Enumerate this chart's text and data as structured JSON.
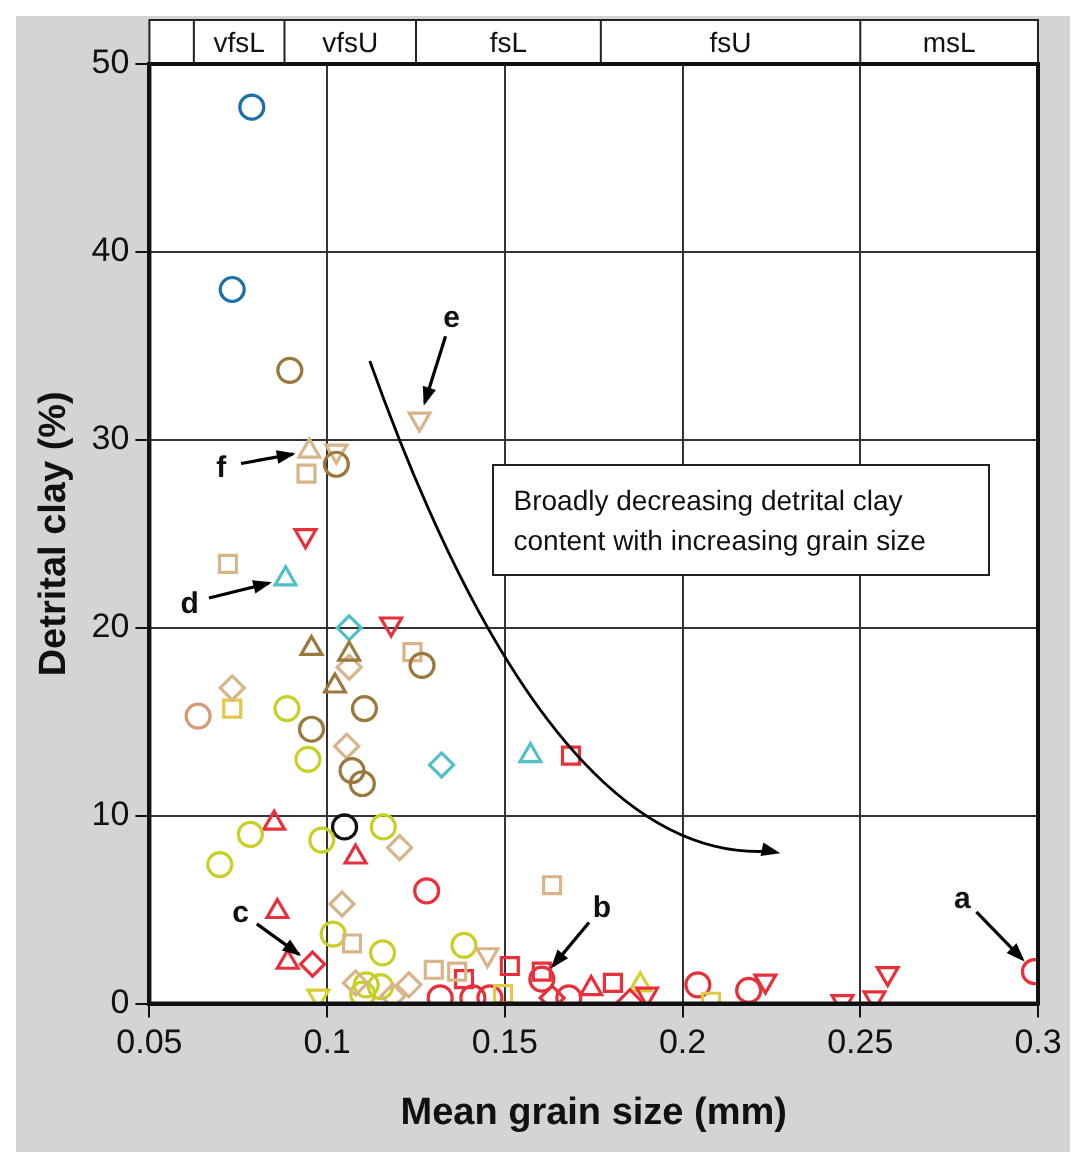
{
  "chart_data": {
    "type": "scatter",
    "xlabel": "Mean grain size (mm)",
    "ylabel": "Detrital clay (%)",
    "xlim": [
      0.05,
      0.3
    ],
    "xticks": [
      0.05,
      0.1,
      0.15,
      0.2,
      0.25,
      0.3
    ],
    "ylim": [
      0,
      50
    ],
    "yticks": [
      0,
      10,
      20,
      30,
      40,
      50
    ],
    "grid": true,
    "legend": false,
    "annotations": [
      "vfsL",
      "vfsU",
      "fsL",
      "fsU",
      "msL",
      {
        "text": "a",
        "x": 0.299,
        "y": 1.7
      },
      {
        "text": "b",
        "x": 0.1604,
        "y": 1.3
      },
      {
        "text": "c",
        "x": 0.0959,
        "y": 2.1
      },
      {
        "text": "d",
        "x": 0.0883,
        "y": 22.6
      },
      {
        "text": "e",
        "x": 0.126,
        "y": 31.1
      },
      {
        "text": "f",
        "x": 0.095,
        "y": 29.4
      },
      "Broadly decreasing detrital clay content with increasing grain size"
    ],
    "series": [
      {
        "color": "#1f6fa8",
        "marker": "circle",
        "x": [
          0.0788,
          0.0733
        ],
        "values": [
          47.7,
          38.0
        ]
      },
      {
        "color": "#9a7a3c",
        "marker": "circle",
        "x": [
          0.0895,
          0.1026,
          0.1267,
          0.0956,
          0.1105,
          0.107,
          0.1099
        ],
        "values": [
          33.7,
          28.7,
          18.0,
          14.6,
          15.7,
          12.4,
          11.7
        ]
      },
      {
        "color": "#9a7a3c",
        "marker": "triangle",
        "x": [
          0.0956,
          0.1062,
          0.1022
        ],
        "values": [
          18.9,
          18.6,
          16.9
        ]
      },
      {
        "color": "#d8b48a",
        "marker": "triangle-down",
        "x": [
          0.126,
          0.1026,
          0.1451
        ],
        "values": [
          31.1,
          29.4,
          2.6
        ]
      },
      {
        "color": "#d8b48a",
        "marker": "triangle",
        "x": [
          0.095
        ],
        "values": [
          29.4
        ]
      },
      {
        "color": "#d8b48a",
        "marker": "square",
        "x": [
          0.0942,
          0.0721,
          0.124,
          0.107,
          0.1366,
          0.1633,
          0.13
        ],
        "values": [
          28.2,
          23.4,
          18.7,
          3.2,
          1.7,
          6.3,
          1.8
        ]
      },
      {
        "color": "#d8b48a",
        "marker": "diamond",
        "x": [
          0.1062,
          0.0733,
          0.1055,
          0.1204,
          0.1042,
          0.108,
          0.123,
          0.1185
        ],
        "values": [
          17.9,
          16.8,
          13.7,
          8.3,
          5.3,
          1.1,
          1.0,
          0.4
        ]
      },
      {
        "color": "#e8303a",
        "marker": "triangle-down",
        "x": [
          0.0939,
          0.118,
          0.19,
          0.2233,
          0.245,
          0.254,
          0.2577
        ],
        "values": [
          24.9,
          20.2,
          0.5,
          1.2,
          0.1,
          0.3,
          1.6
        ]
      },
      {
        "color": "#50c0c8",
        "marker": "triangle",
        "x": [
          0.0883,
          0.1572
        ],
        "values": [
          22.6,
          13.2
        ]
      },
      {
        "color": "#50c0c8",
        "marker": "diamond",
        "x": [
          0.1062,
          0.1322
        ],
        "values": [
          20.0,
          12.7
        ]
      },
      {
        "color": "#e0c848",
        "marker": "square",
        "x": [
          0.0733,
          0.208,
          0.1495
        ],
        "values": [
          15.7,
          0.1,
          0.5
        ]
      },
      {
        "color": "#d89a70",
        "marker": "circle",
        "x": [
          0.0637
        ],
        "values": [
          15.3
        ]
      },
      {
        "color": "#c8d028",
        "marker": "circle",
        "x": [
          0.0887,
          0.0946,
          0.1158,
          0.0784,
          0.0698,
          0.0985,
          0.1017,
          0.1156,
          0.1385,
          0.111,
          0.11,
          0.115
        ],
        "values": [
          15.7,
          13.0,
          9.4,
          9.0,
          7.4,
          8.7,
          3.7,
          2.7,
          3.1,
          1.0,
          0.5,
          0.9
        ]
      },
      {
        "color": "#111111",
        "marker": "circle",
        "x": [
          0.1049
        ],
        "values": [
          9.4
        ]
      },
      {
        "color": "#e8303a",
        "marker": "triangle",
        "x": [
          0.0851,
          0.108,
          0.086,
          0.0889,
          0.1743
        ],
        "values": [
          9.6,
          7.8,
          4.9,
          2.2,
          0.8
        ]
      },
      {
        "color": "#e8303a",
        "marker": "circle",
        "x": [
          0.128,
          0.1604,
          0.168,
          0.2043,
          0.2186,
          0.299,
          0.1318,
          0.141,
          0.1458
        ],
        "values": [
          6.0,
          1.3,
          0.3,
          1.0,
          0.7,
          1.7,
          0.3,
          0.3,
          0.3
        ]
      },
      {
        "color": "#e8303a",
        "marker": "square",
        "x": [
          0.1686,
          0.1385,
          0.1514,
          0.1604,
          0.1804
        ],
        "values": [
          13.2,
          1.3,
          2.0,
          1.7,
          1.1
        ]
      },
      {
        "color": "#e8303a",
        "marker": "diamond",
        "x": [
          0.0959,
          0.1633,
          0.1852
        ],
        "values": [
          2.1,
          0.3,
          0.1
        ]
      },
      {
        "color": "#d8d030",
        "marker": "triangle-down",
        "x": [
          0.0975
        ],
        "values": [
          0.4
        ]
      },
      {
        "color": "#d8d030",
        "marker": "triangle",
        "x": [
          0.1881
        ],
        "values": [
          1.0
        ]
      }
    ]
  }
}
